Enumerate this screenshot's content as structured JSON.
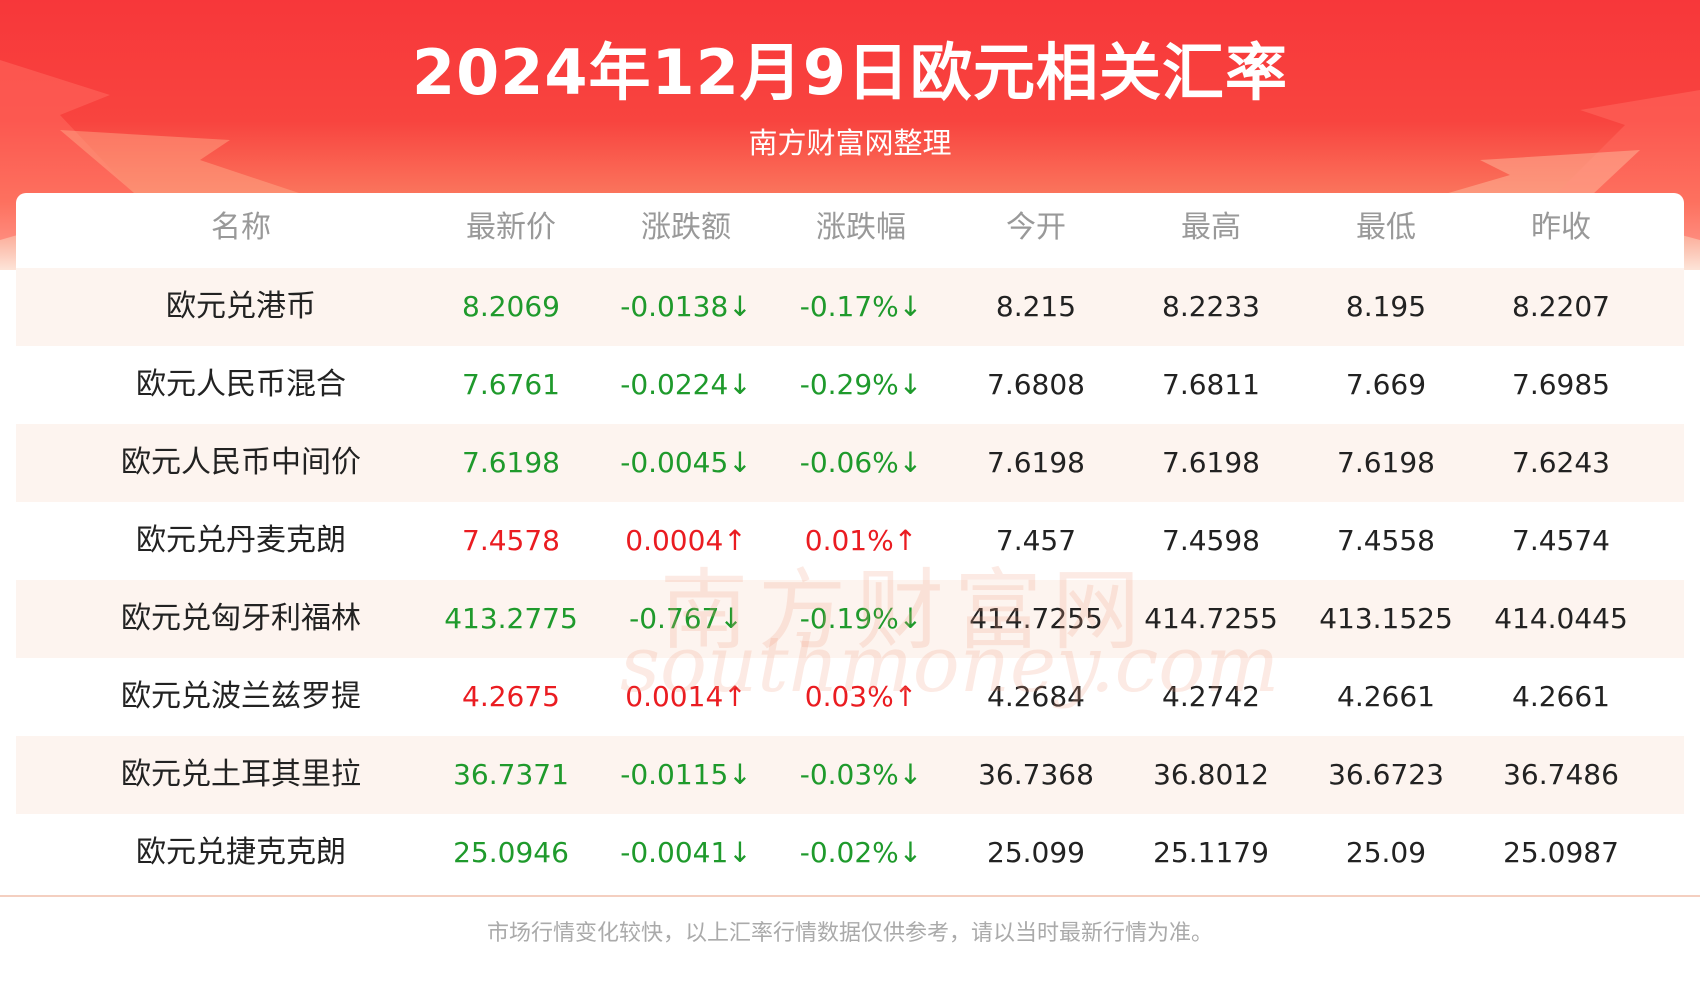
{
  "header": {
    "title": "2024年12月9日欧元相关汇率",
    "subtitle": "南方财富网整理"
  },
  "table": {
    "columns": [
      "名称",
      "最新价",
      "涨跌额",
      "涨跌幅",
      "今开",
      "最高",
      "最低",
      "昨收"
    ],
    "rows": [
      {
        "name": "欧元兑港币",
        "latest": "8.2069",
        "change": "-0.0138↓",
        "pct": "-0.17%↓",
        "open": "8.215",
        "high": "8.2233",
        "low": "8.195",
        "prev": "8.2207",
        "dir": "down"
      },
      {
        "name": "欧元人民币混合",
        "latest": "7.6761",
        "change": "-0.0224↓",
        "pct": "-0.29%↓",
        "open": "7.6808",
        "high": "7.6811",
        "low": "7.669",
        "prev": "7.6985",
        "dir": "down"
      },
      {
        "name": "欧元人民币中间价",
        "latest": "7.6198",
        "change": "-0.0045↓",
        "pct": "-0.06%↓",
        "open": "7.6198",
        "high": "7.6198",
        "low": "7.6198",
        "prev": "7.6243",
        "dir": "down"
      },
      {
        "name": "欧元兑丹麦克朗",
        "latest": "7.4578",
        "change": "0.0004↑",
        "pct": "0.01%↑",
        "open": "7.457",
        "high": "7.4598",
        "low": "7.4558",
        "prev": "7.4574",
        "dir": "up"
      },
      {
        "name": "欧元兑匈牙利福林",
        "latest": "413.2775",
        "change": "-0.767↓",
        "pct": "-0.19%↓",
        "open": "414.7255",
        "high": "414.7255",
        "low": "413.1525",
        "prev": "414.0445",
        "dir": "down"
      },
      {
        "name": "欧元兑波兰兹罗提",
        "latest": "4.2675",
        "change": "0.0014↑",
        "pct": "0.03%↑",
        "open": "4.2684",
        "high": "4.2742",
        "low": "4.2661",
        "prev": "4.2661",
        "dir": "up"
      },
      {
        "name": "欧元兑土耳其里拉",
        "latest": "36.7371",
        "change": "-0.0115↓",
        "pct": "-0.03%↓",
        "open": "36.7368",
        "high": "36.8012",
        "low": "36.6723",
        "prev": "36.7486",
        "dir": "down"
      },
      {
        "name": "欧元兑捷克克朗",
        "latest": "25.0946",
        "change": "-0.0041↓",
        "pct": "-0.02%↓",
        "open": "25.099",
        "high": "25.1179",
        "low": "25.09",
        "prev": "25.0987",
        "dir": "down"
      }
    ]
  },
  "watermark": {
    "cn": "南方财富网",
    "en": "southmoney.com"
  },
  "footer": {
    "note": "市场行情变化较快，以上汇率行情数据仅供参考，请以当时最新行情为准。"
  },
  "colors": {
    "banner": "#f7373a",
    "up": "#ea1c21",
    "down": "#1f9a2c",
    "alt_row": "#fdf4ef"
  }
}
